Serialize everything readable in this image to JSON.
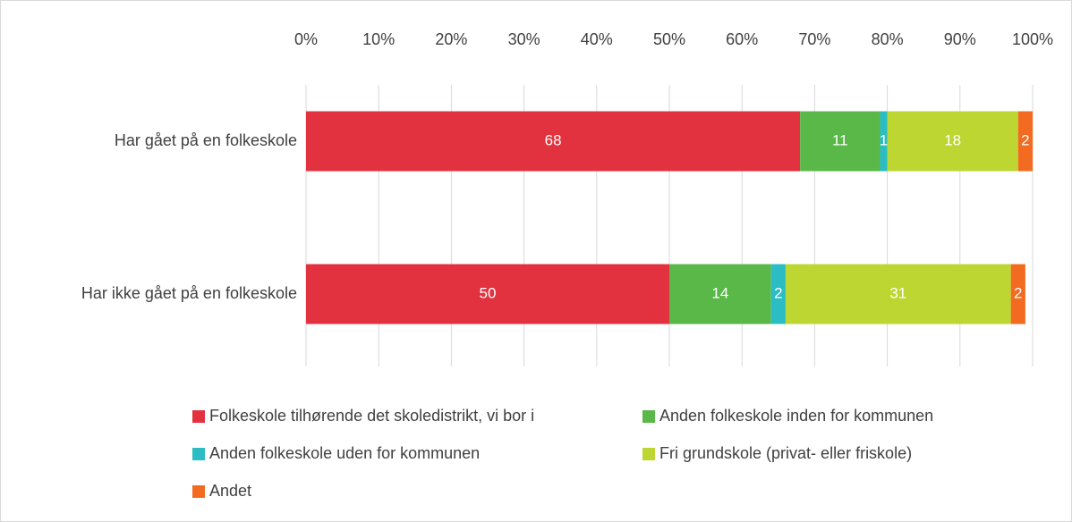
{
  "chart_data": {
    "type": "stacked_barh",
    "categories": [
      "Har gået på en folkeskole",
      "Har ikke gået på en folkeskole"
    ],
    "series": [
      {
        "name": "Folkeskole tilhørende det skoledistrikt, vi bor i",
        "color": "#e3323f",
        "values": [
          68,
          50
        ]
      },
      {
        "name": "Anden folkeskole inden for kommunen",
        "color": "#5ab848",
        "values": [
          11,
          14
        ]
      },
      {
        "name": "Anden folkeskole uden for kommunen",
        "color": "#2bbcc4",
        "values": [
          1,
          2
        ]
      },
      {
        "name": "Fri grundskole (privat- eller friskole)",
        "color": "#bed631",
        "values": [
          18,
          31
        ]
      },
      {
        "name": "Andet",
        "color": "#f26b21",
        "values": [
          2,
          2
        ]
      }
    ],
    "xlim": [
      0,
      100
    ],
    "xticks": [
      {
        "value": 0,
        "label": "0%"
      },
      {
        "value": 10,
        "label": "10%"
      },
      {
        "value": 20,
        "label": "20%"
      },
      {
        "value": 30,
        "label": "30%"
      },
      {
        "value": 40,
        "label": "40%"
      },
      {
        "value": 50,
        "label": "50%"
      },
      {
        "value": 60,
        "label": "60%"
      },
      {
        "value": 70,
        "label": "70%"
      },
      {
        "value": 80,
        "label": "80%"
      },
      {
        "value": 90,
        "label": "90%"
      },
      {
        "value": 100,
        "label": "100%"
      }
    ],
    "grid": true,
    "legend": "bottom"
  }
}
